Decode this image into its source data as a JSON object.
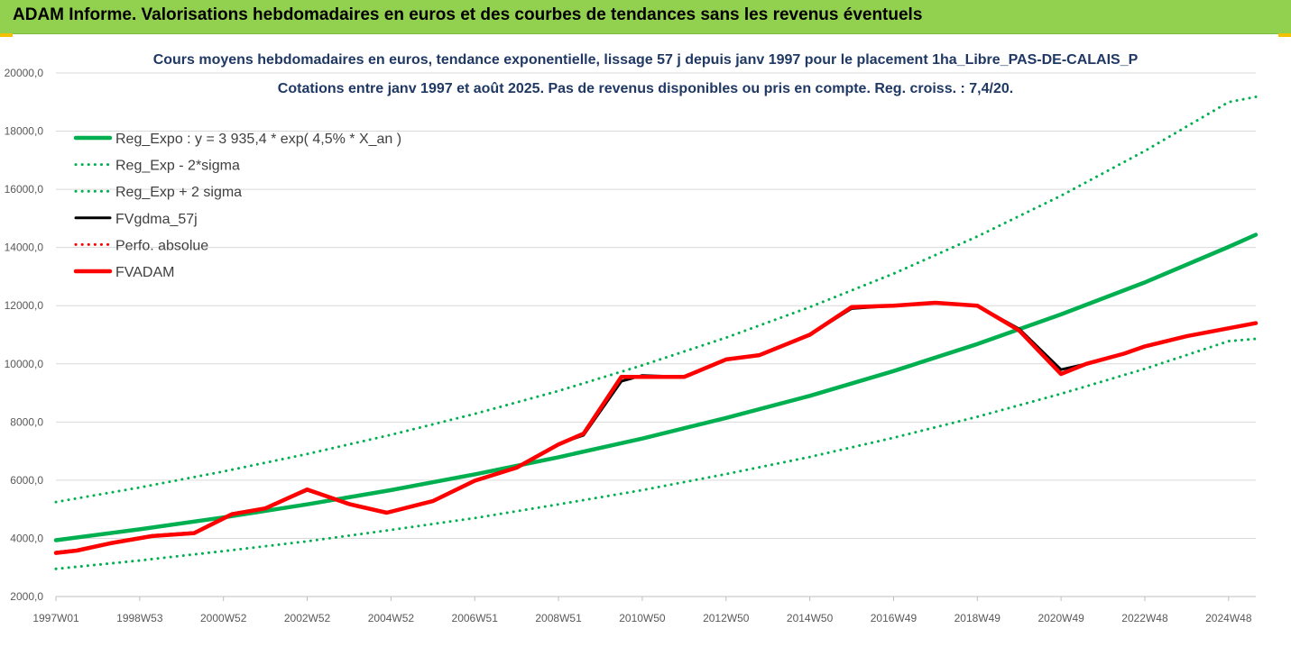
{
  "header": {
    "title": "ADAM Informe. Valorisations hebdomadaires en euros et des courbes de tendances sans les revenus éventuels"
  },
  "colors": {
    "banner": "#92d050",
    "trend": "#00b050",
    "fvadam": "#ff0000",
    "fvgdma": "#000000",
    "title": "#1f3864"
  },
  "chart_data": {
    "type": "line",
    "title": "Cours moyens hebdomadaires en euros, tendance exponentielle, lissage 57 j depuis janv 1997 pour le placement 1ha_Libre_PAS-DE-CALAIS_P",
    "subtitle": "Cotations entre janv 1997 et août 2025.  Pas de revenus disponibles ou pris en compte. Reg. croiss. : 7,4/20.",
    "xlabel": "",
    "ylabel": "",
    "ylim": [
      2000,
      20000
    ],
    "xlim": [
      1997.0,
      2025.65
    ],
    "grid": true,
    "legend_position": "top-left",
    "y_ticks": [
      "2000,0",
      "4000,0",
      "6000,0",
      "8000,0",
      "10000,0",
      "12000,0",
      "14000,0",
      "16000,0",
      "18000,0",
      "20000,0"
    ],
    "y_tick_values": [
      2000,
      4000,
      6000,
      8000,
      10000,
      12000,
      14000,
      16000,
      18000,
      20000
    ],
    "x_ticks": [
      "1997W01",
      "1998W53",
      "2000W52",
      "2002W52",
      "2004W52",
      "2006W51",
      "2008W51",
      "2010W50",
      "2012W50",
      "2014W50",
      "2016W49",
      "2018W49",
      "2020W49",
      "2022W48",
      "2024W48"
    ],
    "x_tick_values": [
      1997.0,
      1999.0,
      2001.0,
      2003.0,
      2005.0,
      2007.0,
      2009.0,
      2011.0,
      2013.0,
      2015.0,
      2017.0,
      2019.0,
      2021.0,
      2023.0,
      2025.0
    ],
    "series": [
      {
        "name": "Reg_Expo : y = 3 935,4 * exp( 4,5% *  X_an )",
        "style": "solid-thick",
        "color": "#00b050",
        "x": [
          1997.0,
          1999.0,
          2001.0,
          2003.0,
          2005.0,
          2007.0,
          2009.0,
          2011.0,
          2013.0,
          2015.0,
          2017.0,
          2019.0,
          2021.0,
          2023.0,
          2025.0,
          2025.65
        ],
        "y": [
          3935,
          4310,
          4720,
          5170,
          5660,
          6200,
          6790,
          7430,
          8140,
          8900,
          9750,
          10680,
          11700,
          12800,
          14020,
          14440
        ]
      },
      {
        "name": "Reg_Exp - 2*sigma",
        "style": "dotted",
        "color": "#00b050",
        "x": [
          1997.0,
          1999.0,
          2001.0,
          2003.0,
          2005.0,
          2007.0,
          2009.0,
          2011.0,
          2013.0,
          2015.0,
          2017.0,
          2019.0,
          2021.0,
          2023.0,
          2025.0,
          2025.65
        ],
        "y": [
          2950,
          3240,
          3560,
          3900,
          4290,
          4700,
          5170,
          5660,
          6210,
          6800,
          7460,
          8180,
          8970,
          9830,
          10780,
          10860
        ]
      },
      {
        "name": "Reg_Exp + 2 sigma",
        "style": "dotted",
        "color": "#00b050",
        "x": [
          1997.0,
          1999.0,
          2001.0,
          2003.0,
          2005.0,
          2007.0,
          2009.0,
          2011.0,
          2013.0,
          2015.0,
          2017.0,
          2019.0,
          2021.0,
          2023.0,
          2025.0,
          2025.65
        ],
        "y": [
          5250,
          5750,
          6300,
          6900,
          7560,
          8280,
          9070,
          9950,
          10900,
          11950,
          13100,
          14380,
          15780,
          17320,
          19000,
          19180
        ]
      },
      {
        "name": "FVgdma_57j",
        "style": "solid",
        "color": "#000000",
        "x": [
          1997.0,
          1997.5,
          1998.3,
          1999.3,
          2000.3,
          2001.2,
          2002.0,
          2003.0,
          2004.0,
          2004.9,
          2006.0,
          2007.0,
          2008.0,
          2009.0,
          2009.6,
          2010.5,
          2011.0,
          2012.0,
          2013.0,
          2013.8,
          2015.0,
          2016.0,
          2017.0,
          2018.0,
          2019.0,
          2020.0,
          2021.0,
          2021.6,
          2022.5,
          2023.0,
          2024.0,
          2025.65
        ],
        "y": [
          3520,
          3600,
          3850,
          4100,
          4200,
          4850,
          5050,
          5650,
          5200,
          4900,
          5300,
          6000,
          6450,
          7250,
          7550,
          9400,
          9600,
          9550,
          10150,
          10300,
          11000,
          11900,
          12000,
          12100,
          12000,
          11200,
          9800,
          10000,
          10350,
          10600,
          10950,
          11400
        ]
      },
      {
        "name": "Perfo. absolue",
        "style": "dotted",
        "color": "#ff0000",
        "x": [],
        "y": []
      },
      {
        "name": "FVADAM",
        "style": "solid-thick",
        "color": "#ff0000",
        "x": [
          1997.0,
          1997.5,
          1998.3,
          1999.3,
          2000.3,
          2001.2,
          2002.0,
          2003.0,
          2004.0,
          2004.9,
          2006.0,
          2007.0,
          2008.0,
          2009.0,
          2009.6,
          2010.5,
          2011.0,
          2012.0,
          2013.0,
          2013.8,
          2015.0,
          2016.0,
          2017.0,
          2018.0,
          2019.0,
          2020.0,
          2021.0,
          2021.6,
          2022.5,
          2023.0,
          2024.0,
          2025.65
        ],
        "y": [
          3500,
          3580,
          3830,
          4080,
          4180,
          4830,
          5030,
          5680,
          5180,
          4880,
          5280,
          5980,
          6430,
          7230,
          7600,
          9550,
          9550,
          9550,
          10150,
          10300,
          11000,
          11950,
          12000,
          12100,
          12000,
          11150,
          9650,
          10000,
          10350,
          10600,
          10950,
          11400
        ]
      }
    ]
  }
}
